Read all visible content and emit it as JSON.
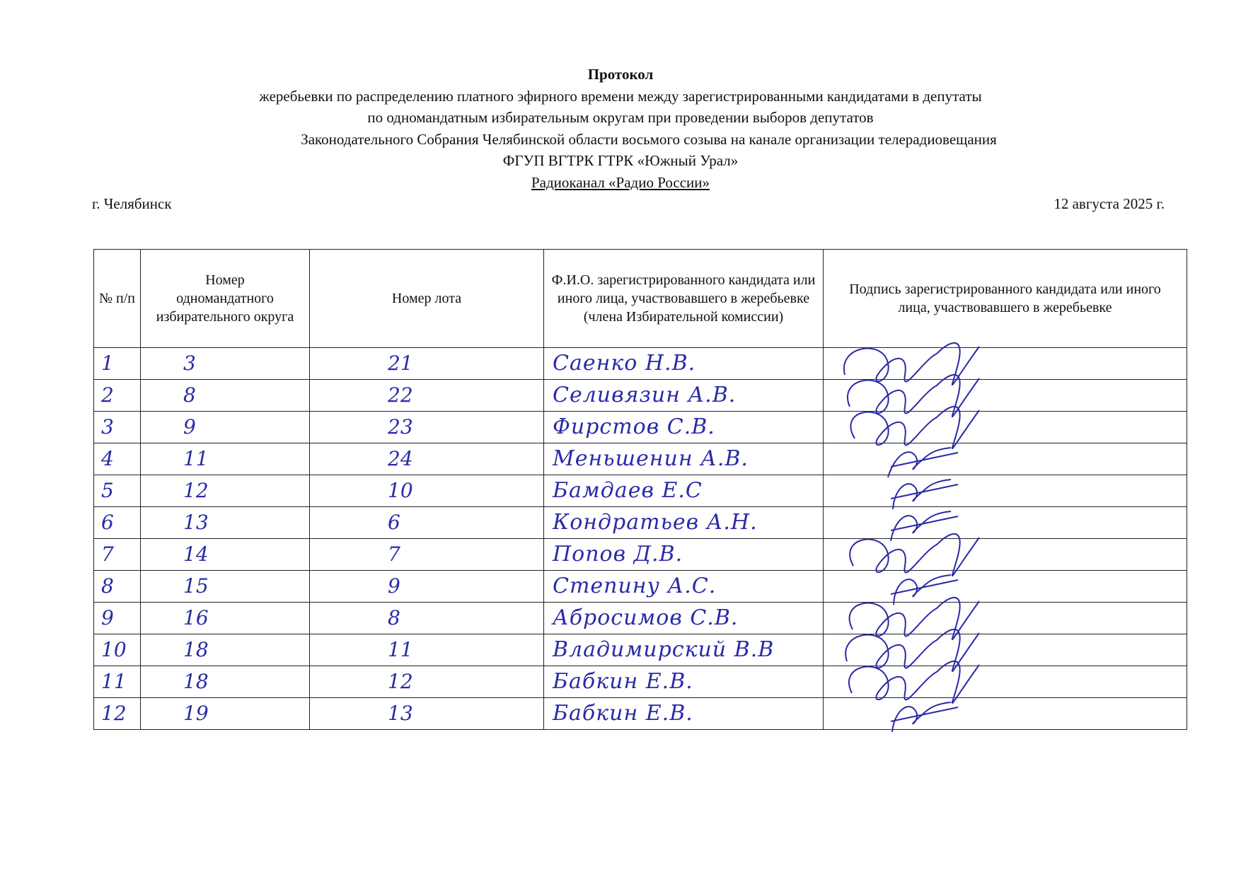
{
  "header": {
    "title": "Протокол",
    "line1": "жеребьевки по распределению платного эфирного времени между зарегистрированными кандидатами в депутаты",
    "line2": "по одномандатным избирательным округам при проведении выборов депутатов",
    "line3": "Законодательного Собрания Челябинской области восьмого созыва на канале организации телерадиовещания",
    "line4": "ФГУП ВГТРК ГТРК «Южный Урал»",
    "line5": "Радиоканал «Радио России»",
    "city": "г. Челябинск",
    "date": "12 августа 2025 г."
  },
  "table": {
    "columns": [
      "№ п/п",
      "Номер одномандатного избирательного округа",
      "Номер лота",
      "Ф.И.О. зарегистрированного кандидата или иного лица, участвовавшего в жеребьевке (члена Избирательной комиссии)",
      "Подпись зарегистрированного кандидата или иного лица, участвовавшего в жеребьевке"
    ],
    "rows": [
      {
        "n": "1",
        "okrug": "3",
        "lot": "21",
        "fio": "Саенко Н.В."
      },
      {
        "n": "2",
        "okrug": "8",
        "lot": "22",
        "fio": "Селивязин А.В."
      },
      {
        "n": "3",
        "okrug": "9",
        "lot": "23",
        "fio": "Фирстов С.В."
      },
      {
        "n": "4",
        "okrug": "11",
        "lot": "24",
        "fio": "Меньшенин А.В."
      },
      {
        "n": "5",
        "okrug": "12",
        "lot": "10",
        "fio": "Бамдаев Е.С"
      },
      {
        "n": "6",
        "okrug": "13",
        "lot": "6",
        "fio": "Кондратьев А.Н."
      },
      {
        "n": "7",
        "okrug": "14",
        "lot": "7",
        "fio": "Попов Д.В."
      },
      {
        "n": "8",
        "okrug": "15",
        "lot": "9",
        "fio": "Степину А.С."
      },
      {
        "n": "9",
        "okrug": "16",
        "lot": "8",
        "fio": "Абросимов С.В."
      },
      {
        "n": "10",
        "okrug": "18",
        "lot": "11",
        "fio": "Владимирский В.В"
      },
      {
        "n": "11",
        "okrug": "18",
        "lot": "12",
        "fio": "Бабкин Е.В."
      },
      {
        "n": "12",
        "okrug": "19",
        "lot": "13",
        "fio": "Бабкин Е.В."
      }
    ]
  },
  "ink_color": "#2a2aa8"
}
